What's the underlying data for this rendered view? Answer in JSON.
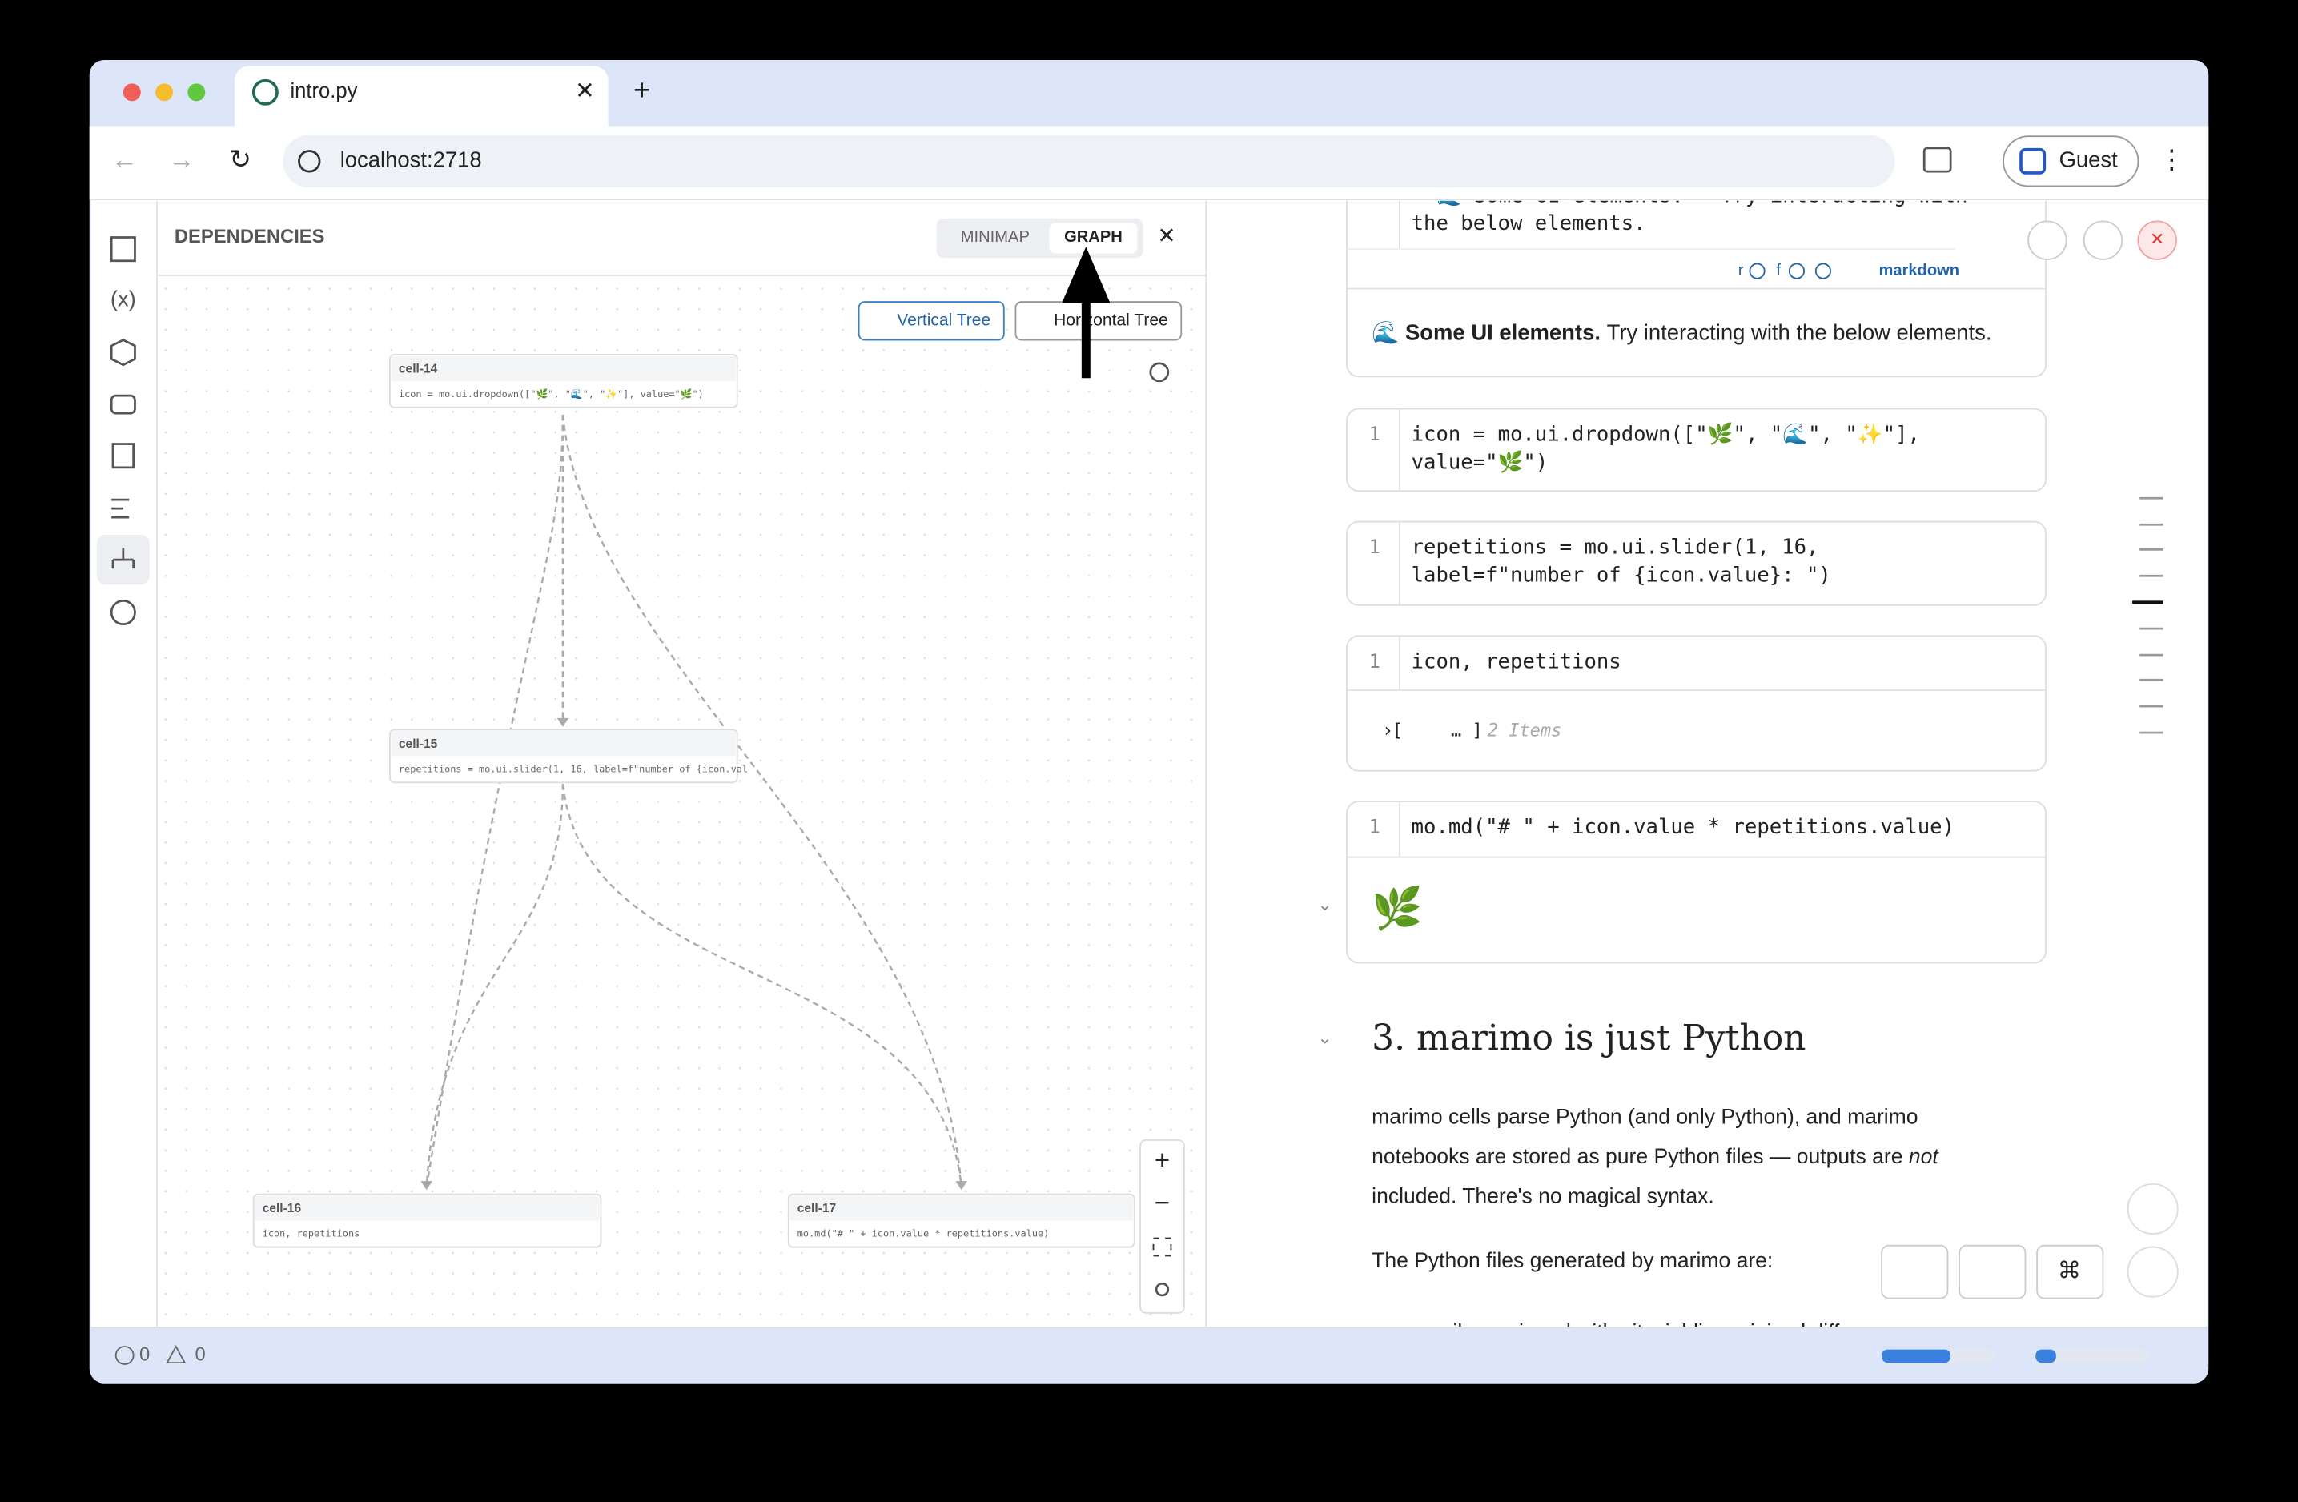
{
  "browser": {
    "tab_title": "intro.py",
    "url": "localhost:2718",
    "profile": "Guest"
  },
  "panel": {
    "title": "DEPENDENCIES",
    "tabs": [
      "MINIMAP",
      "GRAPH"
    ],
    "layout_buttons": [
      "Vertical Tree",
      "Horizontal Tree"
    ],
    "nodes": [
      {
        "id": "cell-14",
        "code": "icon = mo.ui.dropdown([\"🌿\", \"🌊\", \"✨\"], value=\"🌿\")"
      },
      {
        "id": "cell-15",
        "code": "repetitions = mo.ui.slider(1, 16, label=f\"number of {icon.val"
      },
      {
        "id": "cell-16",
        "code": "icon, repetitions"
      },
      {
        "id": "cell-17",
        "code": "mo.md(\"# \" + icon.value * repetitions.value)"
      }
    ]
  },
  "notebook": {
    "markdown_source": [
      "**🌊 Some UI elements.** Try interacting with",
      "the below elements."
    ],
    "cell_badges": [
      "r",
      "f"
    ],
    "cell_type": "markdown",
    "markdown_output": {
      "emoji": "🌊",
      "bold": "Some UI elements.",
      "text": "Try interacting with the below elements."
    },
    "cells": [
      {
        "line": "1",
        "code": [
          "icon = mo.ui.dropdown([\"🌿\", \"🌊\", \"✨\"],",
          "value=\"🌿\")"
        ]
      },
      {
        "line": "1",
        "code": [
          "repetitions = mo.ui.slider(1, 16,",
          "label=f\"number of {icon.value}: \")"
        ]
      },
      {
        "line": "1",
        "code": [
          "icon, repetitions"
        ]
      },
      {
        "line": "1",
        "code": [
          "mo.md(\"# \" + icon.value * repetitions.value)"
        ]
      }
    ],
    "output_list": {
      "open": "[",
      "close": "… ]",
      "count": "2 Items"
    },
    "output_emoji": "🌿",
    "heading": "3. marimo is just Python",
    "paragraph": {
      "line1": "marimo cells parse Python (and only Python), and marimo",
      "line2": "notebooks are stored as pure Python files — outputs are",
      "emphasis": "not",
      "line3": "included. There's no magical syntax."
    },
    "paragraph2": "The Python files generated by marimo are:",
    "cut_line": "easily versioned with git, yielding minimal diffs"
  },
  "status": {
    "errors": "0",
    "warnings": "0"
  }
}
